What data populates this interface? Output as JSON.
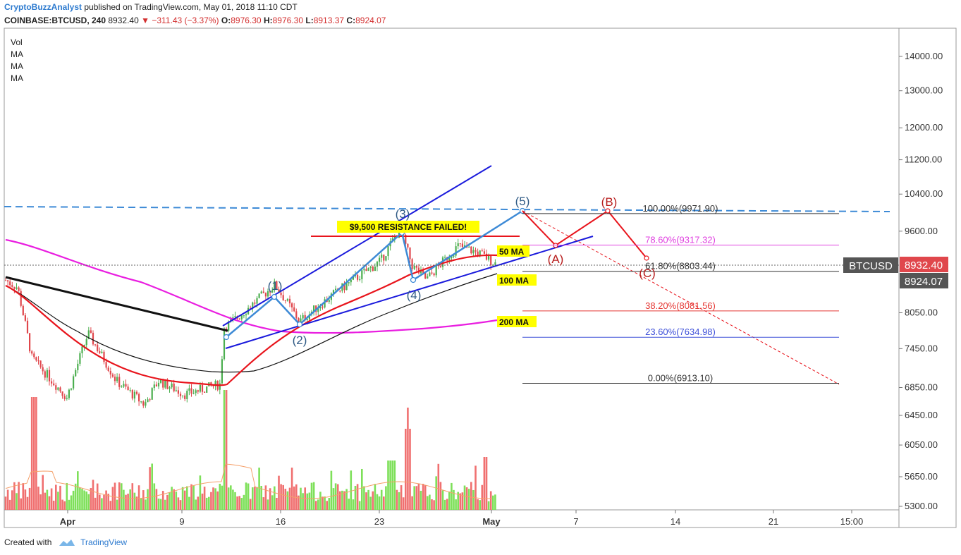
{
  "header": {
    "author": "CryptoBuzzAnalyst",
    "published": "published on TradingView.com, May 01, 2018 11:10 CDT",
    "symbol": "COINBASE:BTCUSD, 240",
    "last": "8932.40",
    "change": "−311.43 (−3.37%)",
    "open_label": "O:",
    "open": "8976.30",
    "high_label": "H:",
    "high": "8976.30",
    "low_label": "L:",
    "low": "8913.37",
    "close_label": "C:",
    "close": "8924.07"
  },
  "indicators": [
    "Vol",
    "MA",
    "MA",
    "MA"
  ],
  "footer": {
    "created_with": "Created with",
    "brand": "TradingView"
  },
  "chart_data": {
    "type": "candlestick",
    "symbol": "BTCUSD",
    "y_ticks": [
      "14000.00",
      "13000.00",
      "12000.00",
      "11200.00",
      "10400.00",
      "9600.00",
      "8050.00",
      "7450.00",
      "6850.00",
      "6450.00",
      "6050.00",
      "5650.00",
      "5300.00"
    ],
    "x_ticks": [
      "Apr",
      "9",
      "16",
      "23",
      "May",
      "7",
      "14",
      "21",
      "15:00"
    ],
    "price_labels": [
      {
        "text": "BTCUSD",
        "value": 8932.4,
        "color": "#555555"
      },
      {
        "text": "8932.40",
        "value": 8932.4,
        "color": "#e0474c"
      },
      {
        "text": "8924.07",
        "value": 8924.07,
        "color": "#555555"
      }
    ],
    "series": [
      {
        "name": "50 MA",
        "color": "#e8141c"
      },
      {
        "name": "100 MA",
        "color": "#111111"
      },
      {
        "name": "200 MA",
        "color": "#e91ee0"
      }
    ],
    "annotations": {
      "resistance": "$9,500 RESISTANCE FAILED!",
      "ma_labels": [
        "50 MA",
        "100 MA",
        "200 MA"
      ],
      "waves": [
        "(1)",
        "(2)",
        "(3)",
        "(4)",
        "(5)"
      ],
      "correction": [
        "(A)",
        "(B)",
        "(C)"
      ]
    },
    "fib_levels": [
      {
        "label": "100.00%(9971.90)",
        "value": 9971.9,
        "color": "#333333"
      },
      {
        "label": "78.60%(9317.32)",
        "value": 9317.32,
        "color": "#e040e0"
      },
      {
        "label": "61.80%(8803.44)",
        "value": 8803.44,
        "color": "#333333"
      },
      {
        "label": "38.20%(8081.56)",
        "value": 8081.56,
        "color": "#e53935"
      },
      {
        "label": "23.60%(7634.98)",
        "value": 7634.98,
        "color": "#3f51d9"
      },
      {
        "label": "0.00%(6913.10)",
        "value": 6913.1,
        "color": "#333333"
      }
    ],
    "colors": {
      "up": "#4caf50",
      "down": "#e0474c",
      "vol_up": "#7ee05a",
      "vol_down": "#f07070",
      "wave_blue": "#3d8ad6",
      "channel": "#1a1adc",
      "red": "#e8141c"
    }
  }
}
